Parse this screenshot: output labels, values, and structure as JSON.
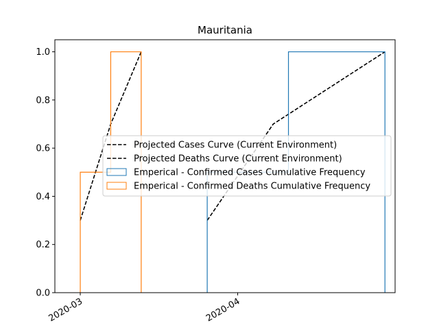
{
  "chart_data": {
    "type": "line",
    "title": "Mauritania",
    "xlabel": "",
    "ylabel": "",
    "x_ticks": [
      "2020-03",
      "2020-04"
    ],
    "y_ticks": [
      "0.0",
      "0.2",
      "0.4",
      "0.6",
      "0.8",
      "1.0"
    ],
    "xlim": [
      "2020-02-25",
      "2020-05-02"
    ],
    "ylim": [
      0,
      1.05
    ],
    "grid": false,
    "legend_position": "center-right",
    "series": [
      {
        "name": "Projected Cases Curve (Current Environment)",
        "kind": "dashed-line",
        "color": "#000000",
        "x": [
          "2020-03-26",
          "2020-04-08",
          "2020-04-30"
        ],
        "y": [
          0.3,
          0.7,
          1.0
        ]
      },
      {
        "name": "Projected Deaths Curve (Current Environment)",
        "kind": "dashed-line",
        "color": "#000000",
        "x": [
          "2020-03-01",
          "2020-03-07",
          "2020-03-13"
        ],
        "y": [
          0.3,
          0.7,
          1.0
        ]
      },
      {
        "name": "Emperical - Confirmed Cases Cumulative Frequency",
        "kind": "step",
        "color": "#1f77b4",
        "x": [
          "2020-03-26",
          "2020-04-11",
          "2020-04-30"
        ],
        "y": [
          0.5,
          1.0,
          1.0
        ]
      },
      {
        "name": "Emperical - Confirmed Deaths Cumulative Frequency",
        "kind": "step",
        "color": "#ff7f0e",
        "x": [
          "2020-03-01",
          "2020-03-07",
          "2020-03-13"
        ],
        "y": [
          0.5,
          1.0,
          1.0
        ]
      }
    ]
  }
}
